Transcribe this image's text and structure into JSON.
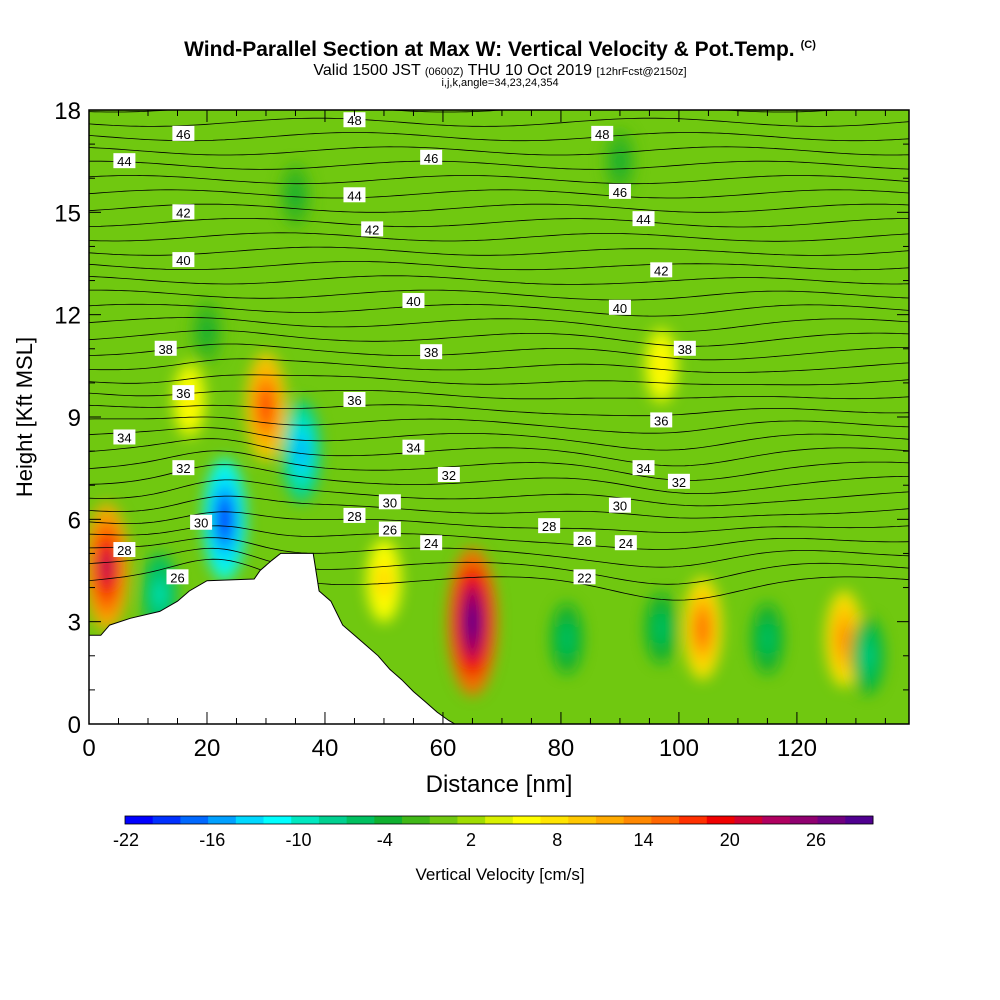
{
  "title": {
    "main": "Wind-Parallel Section at Max W: Vertical Velocity & Pot.Temp.",
    "copyright": "(C)",
    "valid_prefix": "Valid 1500 JST",
    "valid_utc": "(0600Z)",
    "valid_date": "THU 10 Oct 2019",
    "forecast": "[12hrFcst@2150z]",
    "params": "i,j,k,angle=34,23,24,354"
  },
  "chart_data": {
    "type": "heatmap",
    "xlabel": "Distance [nm]",
    "ylabel": "Height [Kft MSL]",
    "xlim": [
      0,
      139
    ],
    "ylim": [
      0,
      18
    ],
    "x_ticks": [
      0,
      20,
      40,
      60,
      80,
      100,
      120
    ],
    "y_ticks": [
      0,
      3,
      6,
      9,
      12,
      15,
      18
    ],
    "colorbar": {
      "label": "Vertical Velocity [cm/s]",
      "tick_labels": [
        "-22",
        "-16",
        "-10",
        "-4",
        "2",
        "8",
        "14",
        "20",
        "26"
      ],
      "colors": [
        "#0000ff",
        "#0030ff",
        "#0068ff",
        "#00a0ff",
        "#00d8ff",
        "#00ffff",
        "#00e8c0",
        "#00d090",
        "#00c060",
        "#10b030",
        "#40b818",
        "#70c810",
        "#a0dc00",
        "#d8f000",
        "#ffff00",
        "#ffe400",
        "#ffc800",
        "#ffaa00",
        "#ff8800",
        "#ff6600",
        "#ff3000",
        "#f00000",
        "#d00030",
        "#b00060",
        "#900070",
        "#700080",
        "#500090"
      ]
    },
    "terrain_kft": [
      [
        0,
        2.6
      ],
      [
        2,
        2.6
      ],
      [
        3.5,
        2.9
      ],
      [
        7,
        3.1
      ],
      [
        12,
        3.3
      ],
      [
        15,
        3.6
      ],
      [
        17,
        3.9
      ],
      [
        20,
        4.2
      ],
      [
        28,
        4.25
      ],
      [
        29,
        4.5
      ],
      [
        31,
        4.8
      ],
      [
        32.5,
        5.0
      ],
      [
        38,
        5.0
      ],
      [
        39,
        3.9
      ],
      [
        41,
        3.6
      ],
      [
        43,
        2.9
      ],
      [
        45,
        2.6
      ],
      [
        47,
        2.3
      ],
      [
        49,
        2.0
      ],
      [
        51,
        1.6
      ],
      [
        53,
        1.3
      ],
      [
        55,
        0.95
      ],
      [
        57,
        0.65
      ],
      [
        59,
        0.35
      ],
      [
        61,
        0.1
      ],
      [
        62,
        0
      ]
    ],
    "vertical_velocity_centers": [
      {
        "x": 3,
        "y": 4.6,
        "value": 24
      },
      {
        "x": 23,
        "y": 6.0,
        "value": -22
      },
      {
        "x": 36,
        "y": 8.0,
        "value": -16
      },
      {
        "x": 30,
        "y": 9.3,
        "value": 18
      },
      {
        "x": 65,
        "y": 3.0,
        "value": 30
      },
      {
        "x": 104,
        "y": 2.8,
        "value": 16
      },
      {
        "x": 97,
        "y": 10.5,
        "value": 8
      },
      {
        "x": 128,
        "y": 2.5,
        "value": 14
      },
      {
        "x": 81,
        "y": 2.5,
        "value": -6
      },
      {
        "x": 97,
        "y": 2.8,
        "value": -6
      },
      {
        "x": 115,
        "y": 2.5,
        "value": -6
      },
      {
        "x": 132,
        "y": 2.0,
        "value": -8
      },
      {
        "x": 12,
        "y": 3.8,
        "value": -10
      },
      {
        "x": 20,
        "y": 11.5,
        "value": -4
      },
      {
        "x": 35,
        "y": 15.5,
        "value": -4
      },
      {
        "x": 90,
        "y": 16.5,
        "value": -4
      },
      {
        "x": 50,
        "y": 4.2,
        "value": 10
      },
      {
        "x": 17,
        "y": 9.5,
        "value": 8
      }
    ],
    "potential_temperature_labels": [
      {
        "text": "48",
        "x": 45,
        "y": 17.7
      },
      {
        "text": "48",
        "x": 87,
        "y": 17.3
      },
      {
        "text": "46",
        "x": 16,
        "y": 17.3
      },
      {
        "text": "46",
        "x": 58,
        "y": 16.6
      },
      {
        "text": "46",
        "x": 90,
        "y": 15.6
      },
      {
        "text": "44",
        "x": 6,
        "y": 16.5
      },
      {
        "text": "44",
        "x": 45,
        "y": 15.5
      },
      {
        "text": "44",
        "x": 94,
        "y": 14.8
      },
      {
        "text": "42",
        "x": 16,
        "y": 15.0
      },
      {
        "text": "42",
        "x": 48,
        "y": 14.5
      },
      {
        "text": "42",
        "x": 97,
        "y": 13.3
      },
      {
        "text": "40",
        "x": 16,
        "y": 13.6
      },
      {
        "text": "40",
        "x": 55,
        "y": 12.4
      },
      {
        "text": "40",
        "x": 90,
        "y": 12.2
      },
      {
        "text": "38",
        "x": 13,
        "y": 11.0
      },
      {
        "text": "38",
        "x": 58,
        "y": 10.9
      },
      {
        "text": "38",
        "x": 101,
        "y": 11.0
      },
      {
        "text": "36",
        "x": 16,
        "y": 9.7
      },
      {
        "text": "36",
        "x": 45,
        "y": 9.5
      },
      {
        "text": "36",
        "x": 97,
        "y": 8.9
      },
      {
        "text": "34",
        "x": 6,
        "y": 8.4
      },
      {
        "text": "34",
        "x": 55,
        "y": 8.1
      },
      {
        "text": "34",
        "x": 94,
        "y": 7.5
      },
      {
        "text": "32",
        "x": 16,
        "y": 7.5
      },
      {
        "text": "32",
        "x": 61,
        "y": 7.3
      },
      {
        "text": "32",
        "x": 100,
        "y": 7.1
      },
      {
        "text": "30",
        "x": 19,
        "y": 5.9
      },
      {
        "text": "30",
        "x": 51,
        "y": 6.5
      },
      {
        "text": "30",
        "x": 90,
        "y": 6.4
      },
      {
        "text": "28",
        "x": 45,
        "y": 6.1
      },
      {
        "text": "28",
        "x": 78,
        "y": 5.8
      },
      {
        "text": "28",
        "x": 6,
        "y": 5.1
      },
      {
        "text": "26",
        "x": 51,
        "y": 5.7
      },
      {
        "text": "26",
        "x": 84,
        "y": 5.4
      },
      {
        "text": "26",
        "x": 15,
        "y": 4.3
      },
      {
        "text": "24",
        "x": 58,
        "y": 5.3
      },
      {
        "text": "24",
        "x": 91,
        "y": 5.3
      },
      {
        "text": "22",
        "x": 84,
        "y": 4.3
      }
    ]
  }
}
